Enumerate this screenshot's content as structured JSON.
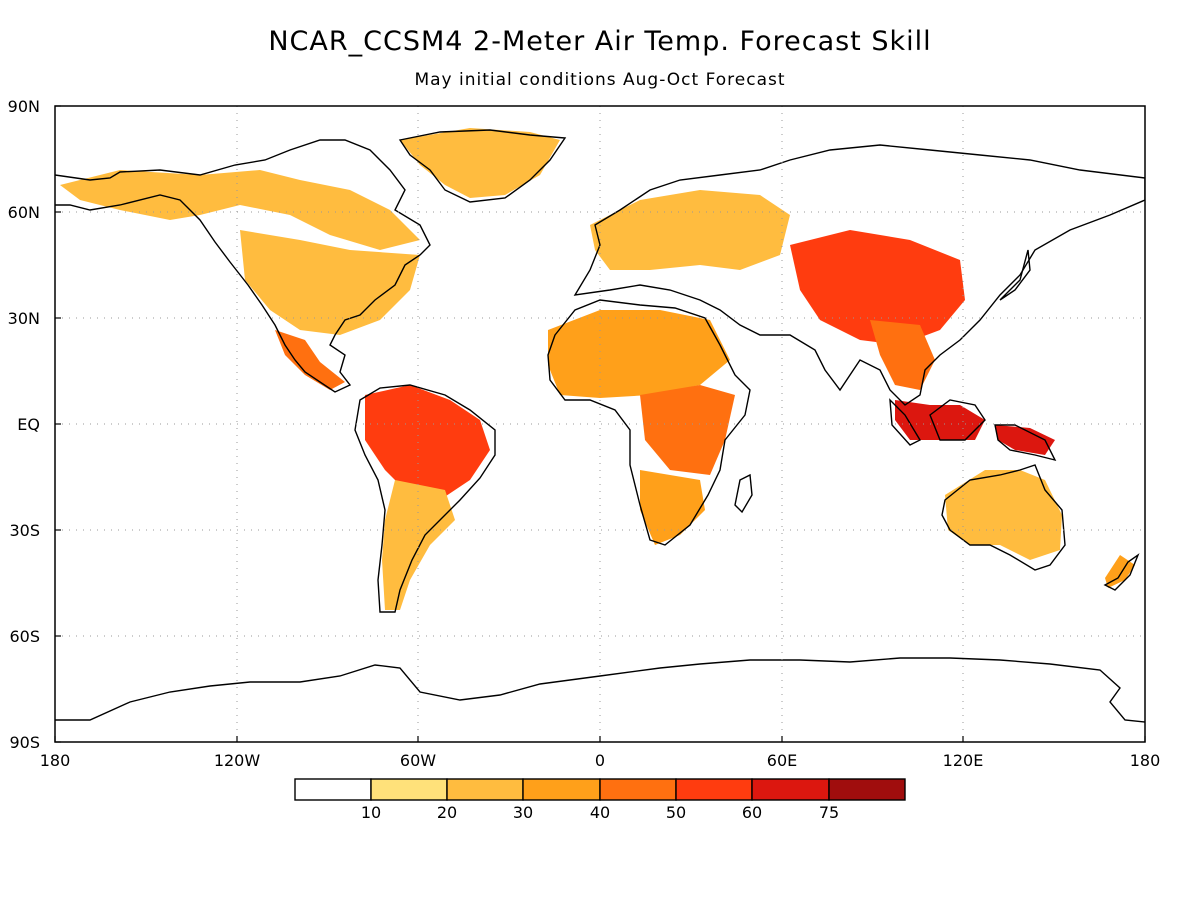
{
  "title": "NCAR_CCSM4 2-Meter Air Temp. Forecast Skill",
  "subtitle": "May initial conditions  Aug-Oct Forecast",
  "lat_labels": [
    "90N",
    "60N",
    "30N",
    "EQ",
    "30S",
    "60S",
    "90S"
  ],
  "lon_labels": [
    "180",
    "120W",
    "60W",
    "0",
    "60E",
    "120E",
    "180"
  ],
  "colorbar": {
    "labels": [
      "10",
      "20",
      "30",
      "40",
      "50",
      "60",
      "75"
    ],
    "colors": [
      "#ffffff",
      "#ffe17a",
      "#ffbc3f",
      "#ffa01a",
      "#ff7010",
      "#ff3c0f",
      "#dc170f",
      "#a00d0d"
    ]
  },
  "skill_regions": [
    {
      "name": "alaska-canada-north",
      "level": 2
    },
    {
      "name": "greenland",
      "level": 2
    },
    {
      "name": "eastern-united-states",
      "level": 2
    },
    {
      "name": "mexico-central-america",
      "level": 4
    },
    {
      "name": "amazon-basin",
      "level": 5
    },
    {
      "name": "southern-south-america",
      "level": 2
    },
    {
      "name": "sahara-west-africa",
      "level": 3
    },
    {
      "name": "central-east-africa",
      "level": 4
    },
    {
      "name": "southern-africa",
      "level": 3
    },
    {
      "name": "europe-russia",
      "level": 2
    },
    {
      "name": "tibet-china",
      "level": 5
    },
    {
      "name": "southeast-asia",
      "level": 4
    },
    {
      "name": "maritime-continent",
      "level": 6
    },
    {
      "name": "new-guinea",
      "level": 6
    },
    {
      "name": "australia",
      "level": 2
    },
    {
      "name": "new-zealand",
      "level": 3
    }
  ]
}
